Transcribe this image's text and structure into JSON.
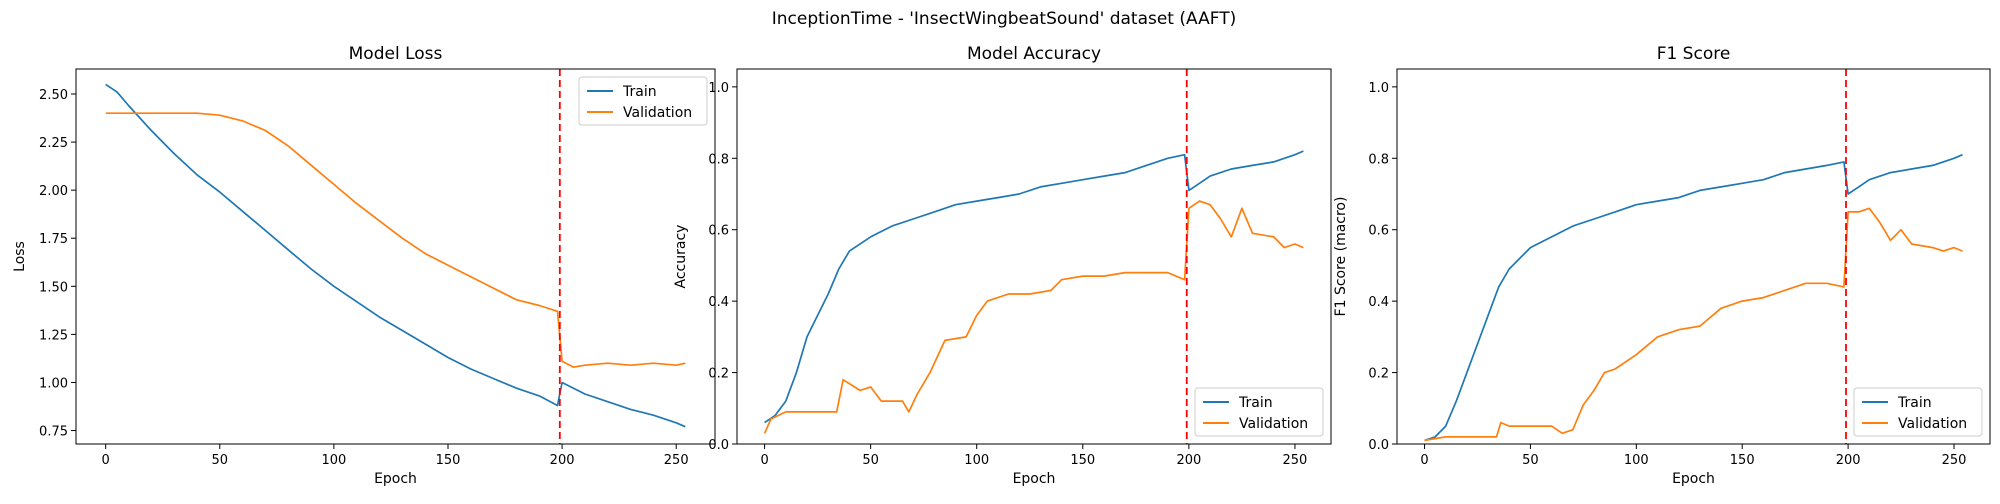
{
  "figure_title": "InceptionTime - 'InsectWingbeatSound' dataset (AAFT)",
  "colors": {
    "train": "#1f77b4",
    "validation": "#ff7f0e",
    "marker": "#ff0000"
  },
  "chart_data": [
    {
      "type": "line",
      "title": "Model Loss",
      "xlabel": "Epoch",
      "ylabel": "Loss",
      "xlim": [
        -13,
        267
      ],
      "ylim": [
        0.68,
        2.63
      ],
      "xticks": [
        0,
        50,
        100,
        150,
        200,
        250
      ],
      "yticks": [
        0.75,
        1.0,
        1.25,
        1.5,
        1.75,
        2.0,
        2.25,
        2.5
      ],
      "ytick_labels": [
        "0.75",
        "1.00",
        "1.25",
        "1.50",
        "1.75",
        "2.00",
        "2.25",
        "2.50"
      ],
      "vline_x": 199,
      "legend_loc": "upper right",
      "grid": false,
      "series": [
        {
          "name": "Train",
          "points": [
            [
              0,
              2.55
            ],
            [
              5,
              2.51
            ],
            [
              10,
              2.44
            ],
            [
              20,
              2.31
            ],
            [
              30,
              2.19
            ],
            [
              40,
              2.08
            ],
            [
              50,
              1.99
            ],
            [
              60,
              1.89
            ],
            [
              70,
              1.79
            ],
            [
              80,
              1.69
            ],
            [
              90,
              1.59
            ],
            [
              100,
              1.5
            ],
            [
              110,
              1.42
            ],
            [
              120,
              1.34
            ],
            [
              130,
              1.27
            ],
            [
              140,
              1.2
            ],
            [
              150,
              1.13
            ],
            [
              160,
              1.07
            ],
            [
              170,
              1.02
            ],
            [
              180,
              0.97
            ],
            [
              190,
              0.93
            ],
            [
              198,
              0.88
            ],
            [
              200,
              1.0
            ],
            [
              205,
              0.97
            ],
            [
              210,
              0.94
            ],
            [
              220,
              0.9
            ],
            [
              230,
              0.86
            ],
            [
              240,
              0.83
            ],
            [
              250,
              0.79
            ],
            [
              254,
              0.77
            ]
          ]
        },
        {
          "name": "Validation",
          "points": [
            [
              0,
              2.4
            ],
            [
              10,
              2.4
            ],
            [
              20,
              2.4
            ],
            [
              30,
              2.4
            ],
            [
              40,
              2.4
            ],
            [
              50,
              2.39
            ],
            [
              60,
              2.36
            ],
            [
              70,
              2.31
            ],
            [
              80,
              2.23
            ],
            [
              90,
              2.13
            ],
            [
              100,
              2.03
            ],
            [
              110,
              1.93
            ],
            [
              120,
              1.84
            ],
            [
              130,
              1.75
            ],
            [
              140,
              1.67
            ],
            [
              150,
              1.61
            ],
            [
              160,
              1.55
            ],
            [
              170,
              1.49
            ],
            [
              180,
              1.43
            ],
            [
              190,
              1.4
            ],
            [
              198,
              1.37
            ],
            [
              200,
              1.11
            ],
            [
              205,
              1.08
            ],
            [
              210,
              1.09
            ],
            [
              220,
              1.1
            ],
            [
              230,
              1.09
            ],
            [
              240,
              1.1
            ],
            [
              250,
              1.09
            ],
            [
              254,
              1.1
            ]
          ]
        }
      ]
    },
    {
      "type": "line",
      "title": "Model Accuracy",
      "xlabel": "Epoch",
      "ylabel": "Accuracy",
      "xlim": [
        -13,
        267
      ],
      "ylim": [
        0.0,
        1.05
      ],
      "xticks": [
        0,
        50,
        100,
        150,
        200,
        250
      ],
      "yticks": [
        0.0,
        0.2,
        0.4,
        0.6,
        0.8,
        1.0
      ],
      "ytick_labels": [
        "0.0",
        "0.2",
        "0.4",
        "0.6",
        "0.8",
        "1.0"
      ],
      "vline_x": 199,
      "legend_loc": "lower right",
      "grid": false,
      "series": [
        {
          "name": "Train",
          "points": [
            [
              0,
              0.06
            ],
            [
              5,
              0.08
            ],
            [
              10,
              0.12
            ],
            [
              15,
              0.2
            ],
            [
              20,
              0.3
            ],
            [
              25,
              0.36
            ],
            [
              30,
              0.42
            ],
            [
              35,
              0.49
            ],
            [
              40,
              0.54
            ],
            [
              50,
              0.58
            ],
            [
              60,
              0.61
            ],
            [
              70,
              0.63
            ],
            [
              80,
              0.65
            ],
            [
              90,
              0.67
            ],
            [
              100,
              0.68
            ],
            [
              110,
              0.69
            ],
            [
              120,
              0.7
            ],
            [
              130,
              0.72
            ],
            [
              140,
              0.73
            ],
            [
              150,
              0.74
            ],
            [
              160,
              0.75
            ],
            [
              170,
              0.76
            ],
            [
              180,
              0.78
            ],
            [
              190,
              0.8
            ],
            [
              198,
              0.81
            ],
            [
              200,
              0.71
            ],
            [
              205,
              0.73
            ],
            [
              210,
              0.75
            ],
            [
              220,
              0.77
            ],
            [
              230,
              0.78
            ],
            [
              240,
              0.79
            ],
            [
              250,
              0.81
            ],
            [
              254,
              0.82
            ]
          ]
        },
        {
          "name": "Validation",
          "points": [
            [
              0,
              0.03
            ],
            [
              3,
              0.07
            ],
            [
              10,
              0.09
            ],
            [
              20,
              0.09
            ],
            [
              34,
              0.09
            ],
            [
              37,
              0.18
            ],
            [
              45,
              0.15
            ],
            [
              50,
              0.16
            ],
            [
              55,
              0.12
            ],
            [
              65,
              0.12
            ],
            [
              68,
              0.09
            ],
            [
              72,
              0.14
            ],
            [
              78,
              0.2
            ],
            [
              85,
              0.29
            ],
            [
              95,
              0.3
            ],
            [
              100,
              0.36
            ],
            [
              105,
              0.4
            ],
            [
              115,
              0.42
            ],
            [
              125,
              0.42
            ],
            [
              135,
              0.43
            ],
            [
              140,
              0.46
            ],
            [
              150,
              0.47
            ],
            [
              160,
              0.47
            ],
            [
              170,
              0.48
            ],
            [
              180,
              0.48
            ],
            [
              190,
              0.48
            ],
            [
              198,
              0.46
            ],
            [
              200,
              0.66
            ],
            [
              205,
              0.68
            ],
            [
              210,
              0.67
            ],
            [
              215,
              0.63
            ],
            [
              220,
              0.58
            ],
            [
              225,
              0.66
            ],
            [
              230,
              0.59
            ],
            [
              240,
              0.58
            ],
            [
              245,
              0.55
            ],
            [
              250,
              0.56
            ],
            [
              254,
              0.55
            ]
          ]
        }
      ]
    },
    {
      "type": "line",
      "title": "F1 Score",
      "xlabel": "Epoch",
      "ylabel": "F1 Score (macro)",
      "xlim": [
        -13,
        267
      ],
      "ylim": [
        0.0,
        1.05
      ],
      "xticks": [
        0,
        50,
        100,
        150,
        200,
        250
      ],
      "yticks": [
        0.0,
        0.2,
        0.4,
        0.6,
        0.8,
        1.0
      ],
      "ytick_labels": [
        "0.0",
        "0.2",
        "0.4",
        "0.6",
        "0.8",
        "1.0"
      ],
      "vline_x": 199,
      "legend_loc": "lower right",
      "grid": false,
      "series": [
        {
          "name": "Train",
          "points": [
            [
              0,
              0.01
            ],
            [
              5,
              0.02
            ],
            [
              10,
              0.05
            ],
            [
              15,
              0.12
            ],
            [
              20,
              0.2
            ],
            [
              25,
              0.28
            ],
            [
              30,
              0.36
            ],
            [
              35,
              0.44
            ],
            [
              40,
              0.49
            ],
            [
              50,
              0.55
            ],
            [
              60,
              0.58
            ],
            [
              70,
              0.61
            ],
            [
              80,
              0.63
            ],
            [
              90,
              0.65
            ],
            [
              100,
              0.67
            ],
            [
              110,
              0.68
            ],
            [
              120,
              0.69
            ],
            [
              130,
              0.71
            ],
            [
              140,
              0.72
            ],
            [
              150,
              0.73
            ],
            [
              160,
              0.74
            ],
            [
              170,
              0.76
            ],
            [
              180,
              0.77
            ],
            [
              190,
              0.78
            ],
            [
              198,
              0.79
            ],
            [
              200,
              0.7
            ],
            [
              205,
              0.72
            ],
            [
              210,
              0.74
            ],
            [
              220,
              0.76
            ],
            [
              230,
              0.77
            ],
            [
              240,
              0.78
            ],
            [
              250,
              0.8
            ],
            [
              254,
              0.81
            ]
          ]
        },
        {
          "name": "Validation",
          "points": [
            [
              0,
              0.01
            ],
            [
              10,
              0.02
            ],
            [
              20,
              0.02
            ],
            [
              34,
              0.02
            ],
            [
              36,
              0.06
            ],
            [
              40,
              0.05
            ],
            [
              50,
              0.05
            ],
            [
              60,
              0.05
            ],
            [
              65,
              0.03
            ],
            [
              70,
              0.04
            ],
            [
              75,
              0.11
            ],
            [
              80,
              0.15
            ],
            [
              85,
              0.2
            ],
            [
              90,
              0.21
            ],
            [
              100,
              0.25
            ],
            [
              110,
              0.3
            ],
            [
              120,
              0.32
            ],
            [
              130,
              0.33
            ],
            [
              140,
              0.38
            ],
            [
              150,
              0.4
            ],
            [
              160,
              0.41
            ],
            [
              170,
              0.43
            ],
            [
              180,
              0.45
            ],
            [
              190,
              0.45
            ],
            [
              198,
              0.44
            ],
            [
              200,
              0.65
            ],
            [
              205,
              0.65
            ],
            [
              210,
              0.66
            ],
            [
              215,
              0.62
            ],
            [
              220,
              0.57
            ],
            [
              225,
              0.6
            ],
            [
              230,
              0.56
            ],
            [
              240,
              0.55
            ],
            [
              245,
              0.54
            ],
            [
              250,
              0.55
            ],
            [
              254,
              0.54
            ]
          ]
        }
      ]
    }
  ]
}
